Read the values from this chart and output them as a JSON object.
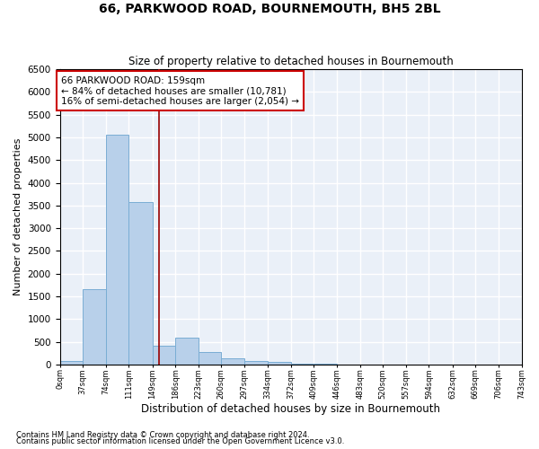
{
  "title": "66, PARKWOOD ROAD, BOURNEMOUTH, BH5 2BL",
  "subtitle": "Size of property relative to detached houses in Bournemouth",
  "xlabel": "Distribution of detached houses by size in Bournemouth",
  "ylabel": "Number of detached properties",
  "bar_color": "#b8d0ea",
  "bar_edge_color": "#7aadd4",
  "background_color": "#eaf0f8",
  "grid_color": "#ffffff",
  "annotation_line1": "66 PARKWOOD ROAD: 159sqm",
  "annotation_line2": "← 84% of detached houses are smaller (10,781)",
  "annotation_line3": "16% of semi-detached houses are larger (2,054) →",
  "vline_x": 159,
  "vline_color": "#990000",
  "bin_edges": [
    0,
    37,
    74,
    111,
    149,
    186,
    223,
    260,
    297,
    334,
    372,
    409,
    446,
    483,
    520,
    557,
    594,
    632,
    669,
    706,
    743
  ],
  "bar_heights": [
    80,
    1650,
    5050,
    3580,
    420,
    600,
    280,
    140,
    80,
    50,
    20,
    10,
    5,
    3,
    2,
    1,
    0,
    0,
    0,
    0
  ],
  "ylim": [
    0,
    6500
  ],
  "yticks": [
    0,
    500,
    1000,
    1500,
    2000,
    2500,
    3000,
    3500,
    4000,
    4500,
    5000,
    5500,
    6000,
    6500
  ],
  "footnote1": "Contains HM Land Registry data © Crown copyright and database right 2024.",
  "footnote2": "Contains public sector information licensed under the Open Government Licence v3.0."
}
